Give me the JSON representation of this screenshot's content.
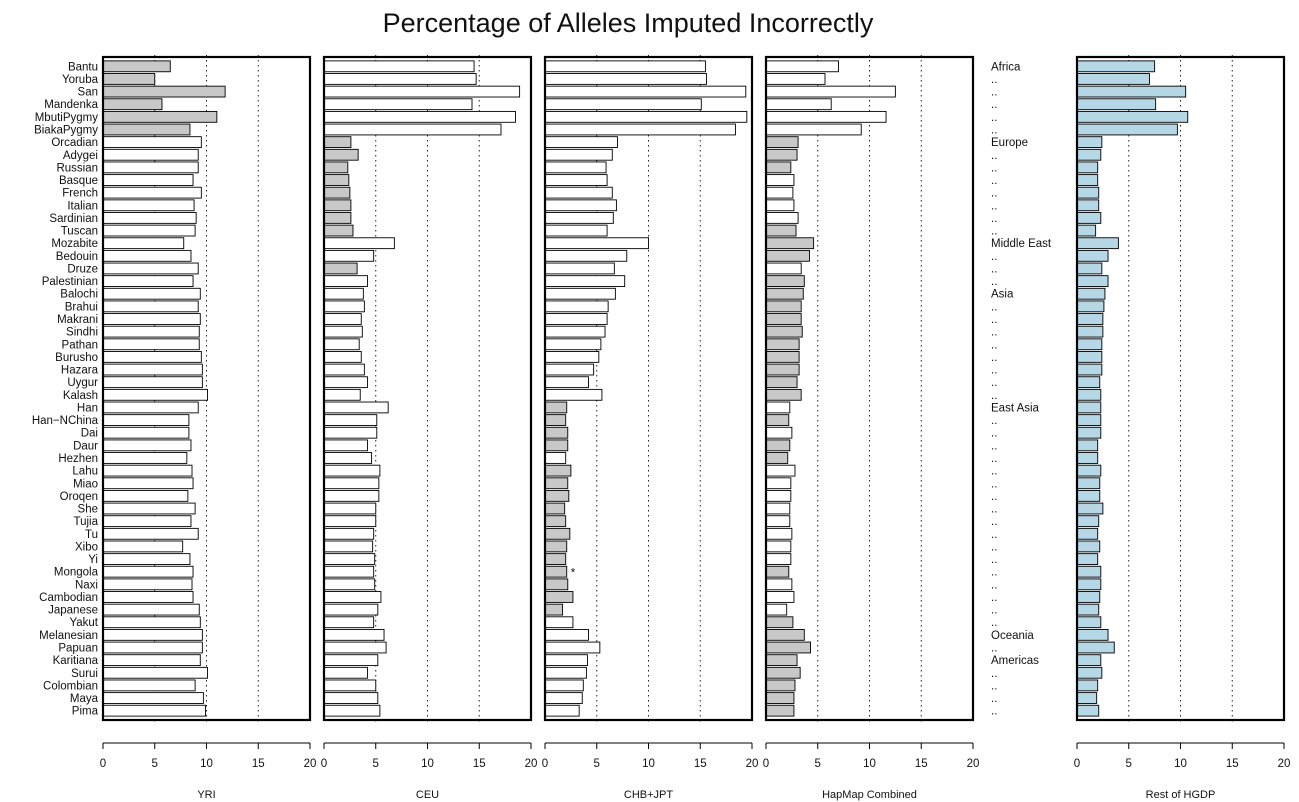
{
  "chart_data": {
    "type": "bar",
    "orientation": "horizontal",
    "title": "Percentage of Alleles Imputed Incorrectly",
    "xlim": [
      0,
      20
    ],
    "xticks": [
      0,
      5,
      10,
      15,
      20
    ],
    "gridlines_at": [
      5,
      10,
      15
    ],
    "colors": {
      "highlight": "#c8c8c8",
      "default": "#ffffff",
      "rest": "#b5d7e6",
      "outline": "#000000"
    },
    "categories": [
      "Bantu",
      "Yoruba",
      "San",
      "Mandenka",
      "MbutiPygmy",
      "BiakaPygmy",
      "Orcadian",
      "Adygei",
      "Russian",
      "Basque",
      "French",
      "Italian",
      "Sardinian",
      "Tuscan",
      "Mozabite",
      "Bedouin",
      "Druze",
      "Palestinian",
      "Balochi",
      "Brahui",
      "Makrani",
      "Sindhi",
      "Pathan",
      "Burusho",
      "Hazara",
      "Uygur",
      "Kalash",
      "Han",
      "Han−NChina",
      "Dai",
      "Daur",
      "Hezhen",
      "Lahu",
      "Miao",
      "Oroqen",
      "She",
      "Tujia",
      "Tu",
      "Xibo",
      "Yi",
      "Mongola",
      "Naxi",
      "Cambodian",
      "Japanese",
      "Yakut",
      "Melanesian",
      "Papuan",
      "Karitiana",
      "Surui",
      "Colombian",
      "Maya",
      "Pima"
    ],
    "region_labels": [
      "Africa",
      "..",
      "..",
      "..",
      "..",
      "..",
      "Europe",
      "..",
      "..",
      "..",
      "..",
      "..",
      "..",
      "..",
      "Middle East",
      "..",
      "..",
      "..",
      "Asia",
      "..",
      "..",
      "..",
      "..",
      "..",
      "..",
      "..",
      "..",
      "East Asia",
      "..",
      "..",
      "..",
      "..",
      "..",
      "..",
      "..",
      "..",
      "..",
      "..",
      "..",
      "..",
      "..",
      "..",
      "..",
      "..",
      "..",
      "Oceania",
      "..",
      "Americas",
      "..",
      "..",
      "..",
      ".."
    ],
    "panels": [
      {
        "name": "YRI",
        "highlight_range": [
          0,
          5
        ],
        "values": [
          6.5,
          5.0,
          11.8,
          5.7,
          11.0,
          8.4,
          9.5,
          9.2,
          9.2,
          8.7,
          9.5,
          8.8,
          9.0,
          8.9,
          7.8,
          8.5,
          9.2,
          8.7,
          9.4,
          9.2,
          9.4,
          9.3,
          9.3,
          9.5,
          9.6,
          9.6,
          10.1,
          9.2,
          8.3,
          8.3,
          8.5,
          8.1,
          8.6,
          8.7,
          8.2,
          8.9,
          8.5,
          9.2,
          7.7,
          8.4,
          8.7,
          8.6,
          8.7,
          9.3,
          9.4,
          9.6,
          9.6,
          9.4,
          10.1,
          8.9,
          9.7,
          9.9
        ]
      },
      {
        "name": "CEU",
        "highlight_range": [
          6,
          13
        ],
        "extra_highlight": [
          16
        ],
        "values": [
          14.5,
          14.7,
          18.9,
          14.3,
          18.5,
          17.1,
          2.6,
          3.3,
          2.3,
          2.4,
          2.5,
          2.6,
          2.6,
          2.8,
          6.8,
          4.8,
          3.2,
          4.2,
          3.8,
          3.9,
          3.6,
          3.7,
          3.4,
          3.6,
          3.9,
          4.2,
          3.5,
          6.2,
          5.1,
          5.1,
          4.2,
          4.6,
          5.4,
          5.3,
          5.3,
          5.0,
          5.0,
          4.8,
          4.7,
          4.9,
          4.8,
          4.9,
          5.5,
          5.2,
          4.8,
          5.8,
          6.0,
          5.2,
          4.2,
          5.0,
          5.2,
          5.4
        ]
      },
      {
        "name": "CHB+JPT",
        "highlight_range": [
          27,
          43
        ],
        "exclude_highlight": [
          31
        ],
        "values": [
          15.5,
          15.6,
          19.4,
          15.1,
          19.5,
          18.4,
          7.0,
          6.5,
          5.9,
          6.0,
          6.5,
          6.9,
          6.6,
          6.0,
          10.0,
          7.9,
          6.7,
          7.7,
          6.8,
          6.1,
          6.0,
          5.8,
          5.4,
          5.2,
          4.7,
          4.2,
          5.5,
          2.1,
          2.0,
          2.2,
          2.2,
          2.0,
          2.5,
          2.2,
          2.3,
          1.9,
          2.0,
          2.4,
          2.1,
          2.0,
          2.1,
          2.2,
          2.7,
          1.7,
          2.7,
          4.2,
          5.3,
          4.1,
          4.0,
          3.7,
          3.6,
          3.3
        ]
      },
      {
        "name": "HapMap Combined",
        "highlight_range": [
          6,
          51
        ],
        "exclude_highlight": [
          9,
          10,
          11,
          12,
          16,
          27,
          29,
          32,
          33,
          34,
          35,
          36,
          37,
          38,
          39,
          41,
          42,
          43
        ],
        "values": [
          7.0,
          5.7,
          12.5,
          6.3,
          11.6,
          9.2,
          3.1,
          3.0,
          2.4,
          2.7,
          2.6,
          2.7,
          3.1,
          2.9,
          4.6,
          4.2,
          3.4,
          3.7,
          3.6,
          3.4,
          3.4,
          3.5,
          3.2,
          3.2,
          3.2,
          3.0,
          3.4,
          2.3,
          2.2,
          2.5,
          2.3,
          2.1,
          2.8,
          2.4,
          2.4,
          2.3,
          2.3,
          2.5,
          2.4,
          2.4,
          2.2,
          2.5,
          2.7,
          2.0,
          2.6,
          3.7,
          4.3,
          3.0,
          3.3,
          2.8,
          2.7,
          2.7
        ]
      },
      {
        "name": "Rest of HGDP",
        "fill": "rest",
        "values": [
          7.5,
          7.0,
          10.5,
          7.6,
          10.7,
          9.7,
          2.4,
          2.3,
          2.0,
          2.0,
          2.1,
          2.1,
          2.3,
          1.8,
          4.0,
          3.0,
          2.4,
          3.0,
          2.7,
          2.6,
          2.5,
          2.5,
          2.4,
          2.4,
          2.4,
          2.2,
          2.3,
          2.3,
          2.3,
          2.3,
          2.0,
          2.0,
          2.3,
          2.2,
          2.2,
          2.5,
          2.1,
          2.0,
          2.2,
          2.0,
          2.3,
          2.3,
          2.2,
          2.1,
          2.3,
          3.0,
          3.6,
          2.3,
          2.4,
          2.0,
          1.9,
          2.1
        ]
      }
    ],
    "annotation": "*"
  }
}
